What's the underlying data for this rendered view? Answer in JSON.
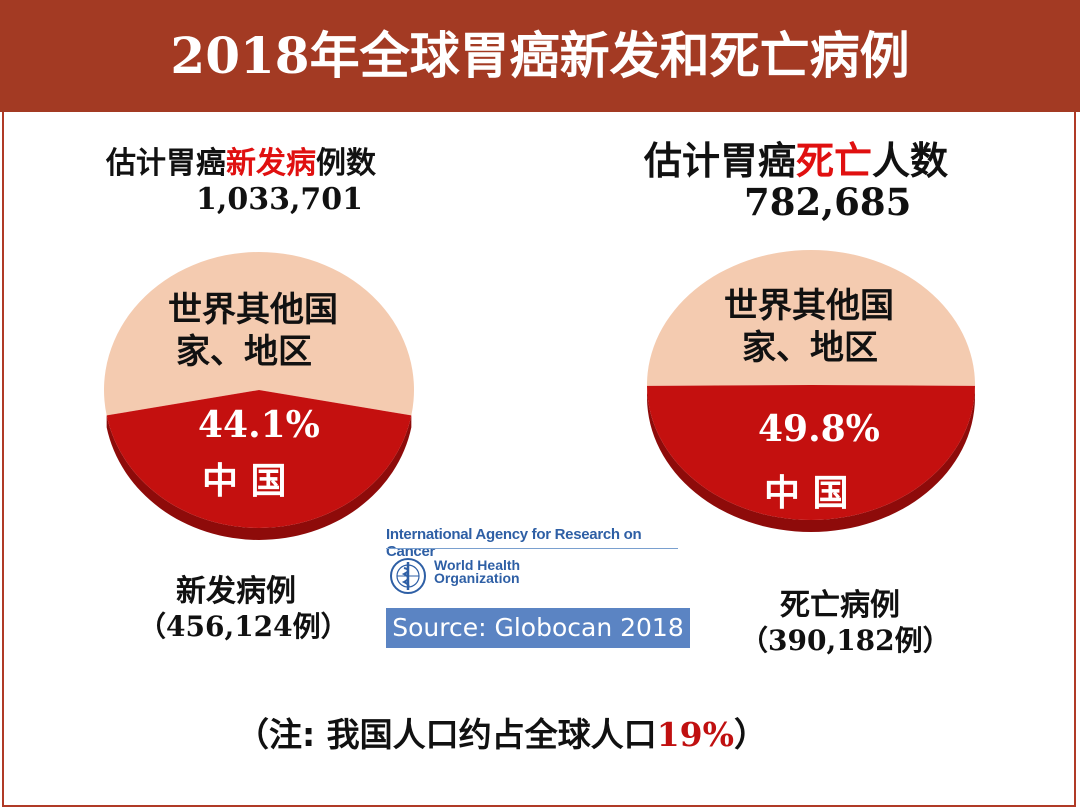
{
  "title": "2018年全球胃癌新发和死亡病例",
  "chart_data": [
    {
      "type": "pie",
      "title": {
        "prefix": "估计胃癌",
        "highlight": "新发病",
        "suffix": "例数"
      },
      "total": "1,033,701",
      "slices": [
        {
          "name": "中 国",
          "value": 44.1,
          "label": "44.1%",
          "color": "#c4100f"
        },
        {
          "name_lines": [
            "世界其他国",
            "家、地区"
          ],
          "value": 55.9,
          "color": "#f4cbb0"
        }
      ],
      "caption_lines": [
        "新发病例",
        "（456,124例）"
      ]
    },
    {
      "type": "pie",
      "title": {
        "prefix": "估计胃癌",
        "highlight": "死亡",
        "suffix": "人数"
      },
      "total": "782,685",
      "slices": [
        {
          "name": "中 国",
          "value": 49.8,
          "label": "49.8%",
          "color": "#c4100f"
        },
        {
          "name_lines": [
            "世界其他国",
            "家、地区"
          ],
          "value": 50.2,
          "color": "#f4cbb0"
        }
      ],
      "caption_lines": [
        "死亡病例",
        "（390,182例）"
      ]
    }
  ],
  "source": {
    "org": "International Agency for Research on Cancer",
    "who_lines": [
      "World Health",
      "Organization"
    ],
    "label": "Source: Globocan 2018"
  },
  "note": {
    "prefix": "（注: 我国人口约占全球人口",
    "highlight": "19%",
    "suffix": "）"
  },
  "colors": {
    "banner": "#a33a23",
    "china": "#c4100f",
    "china_side": "#8e0b0a",
    "rest": "#f4cbb0",
    "rest_side": "#d9a98a",
    "highlight": "#e01010"
  }
}
